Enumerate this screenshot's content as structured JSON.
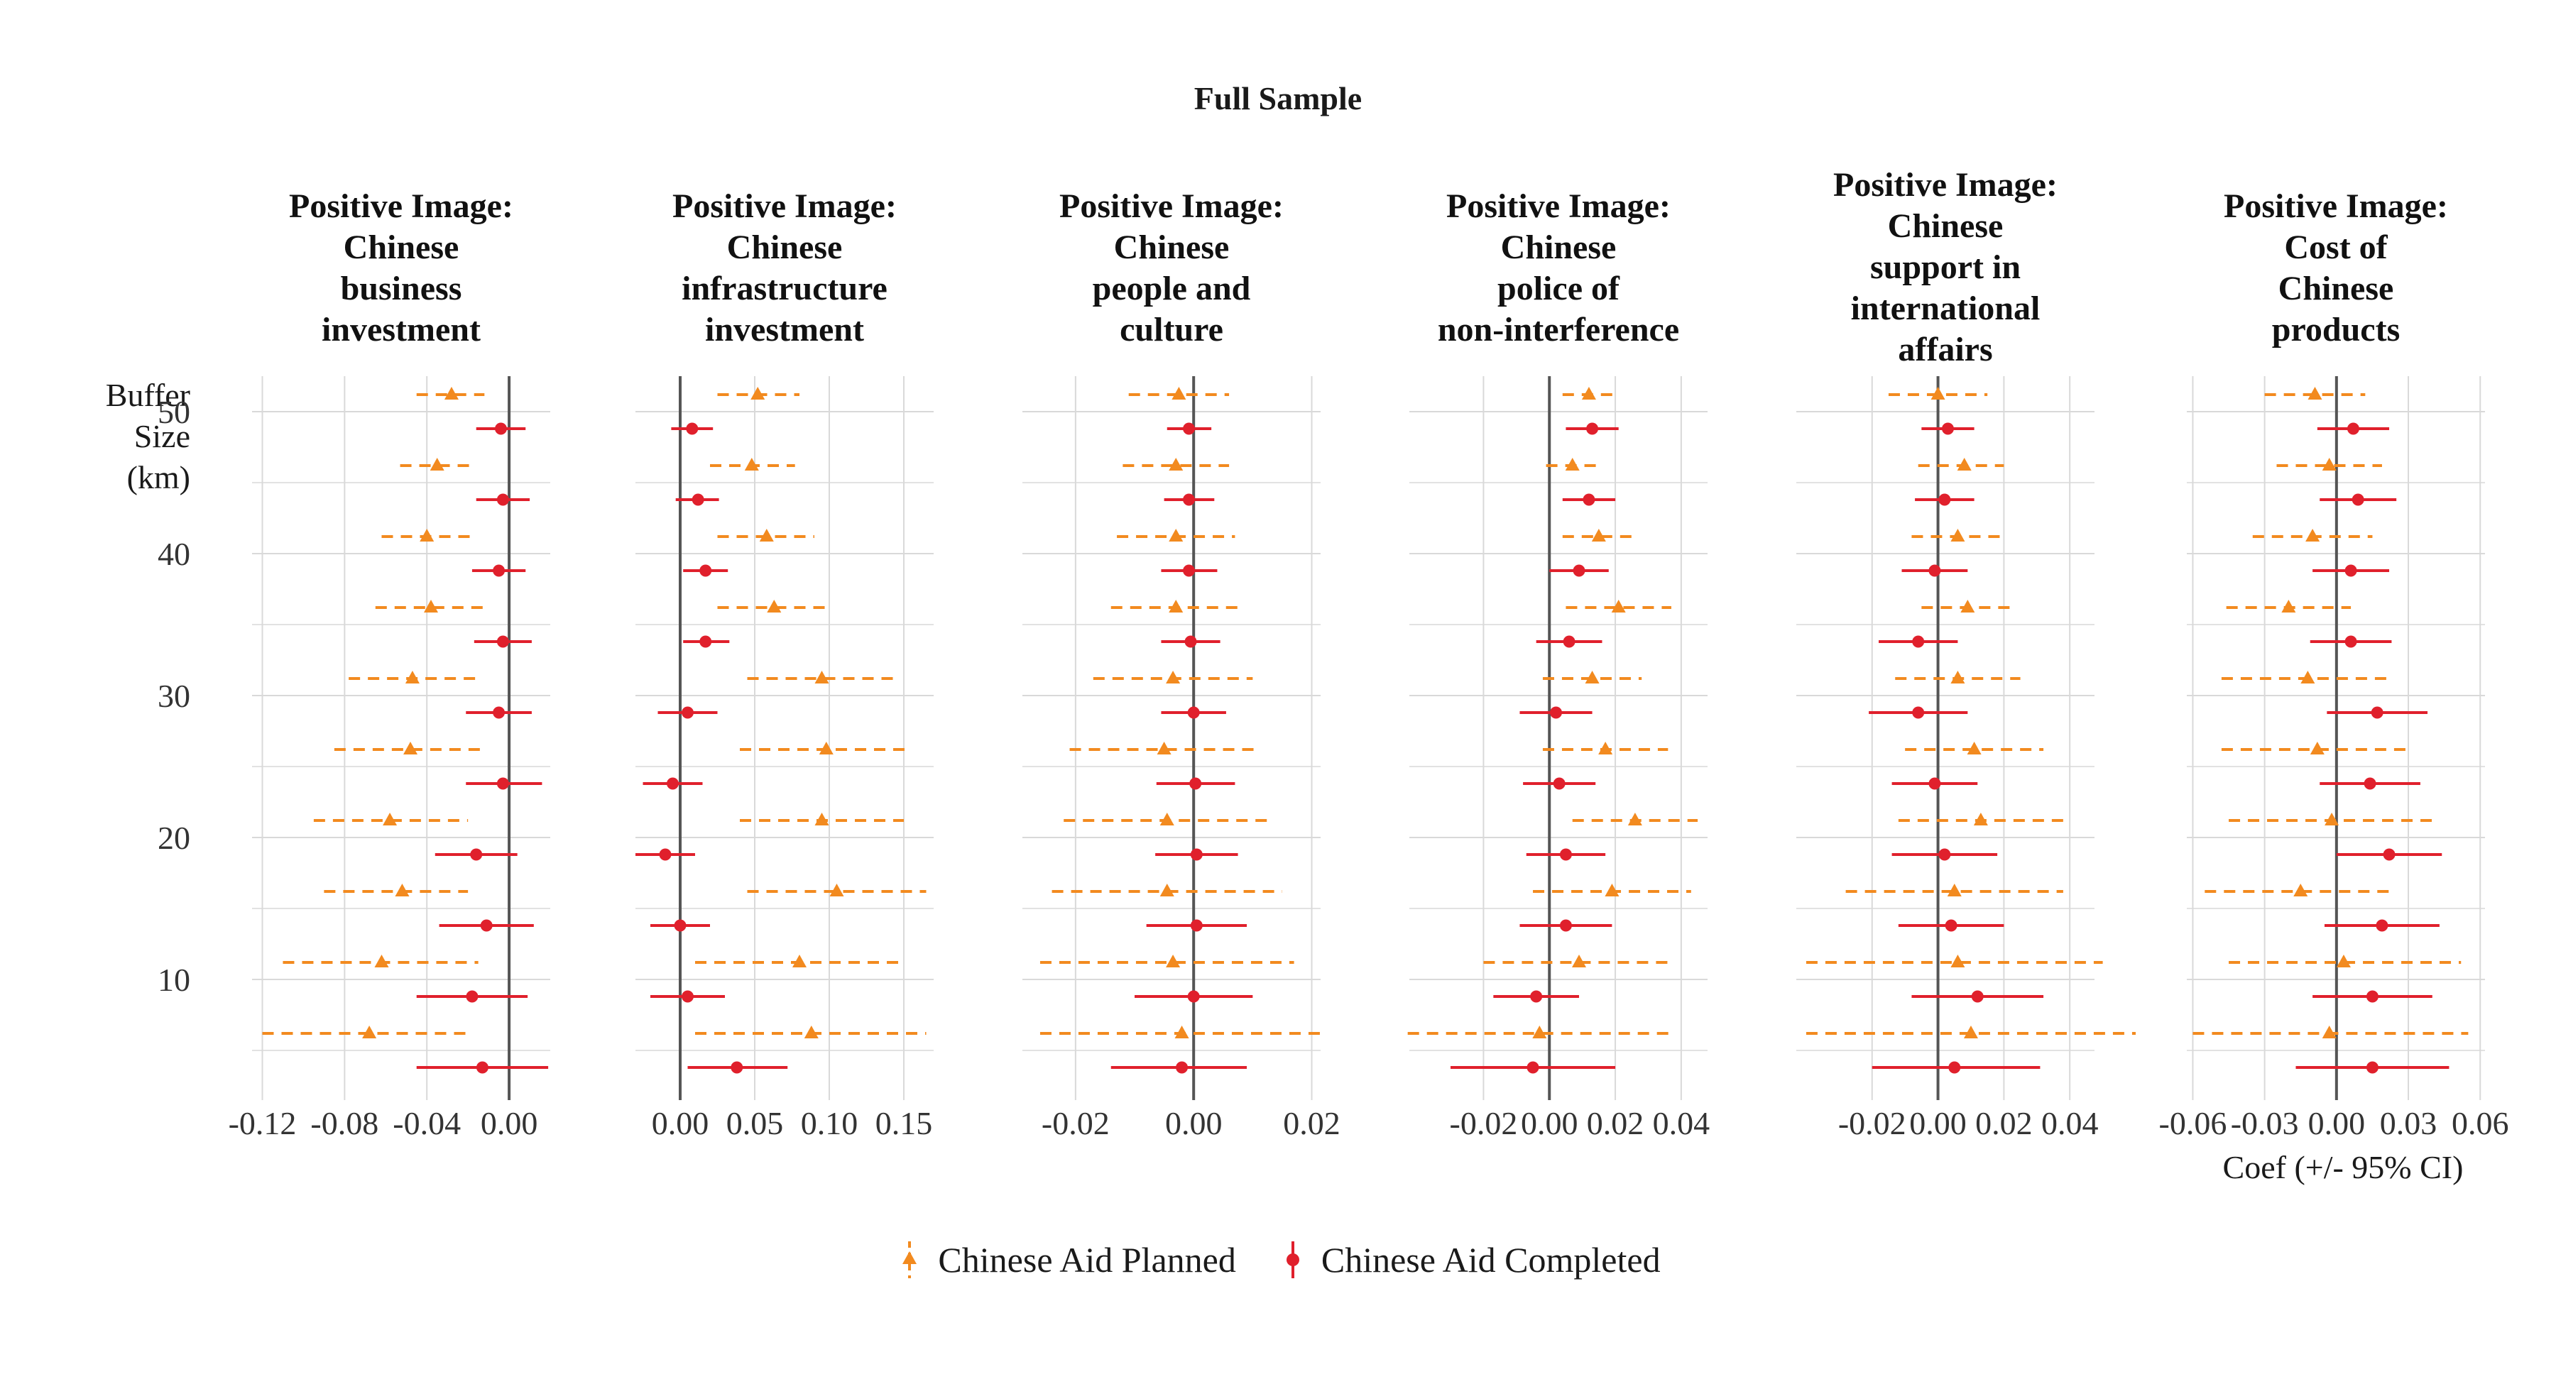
{
  "chart_data": {
    "type": "scatter",
    "title": "Full Sample",
    "y_axis_label": [
      "Buffer",
      "Size",
      "(km)"
    ],
    "y_ticks": [
      10,
      20,
      30,
      40,
      50
    ],
    "y_range": [
      52.5,
      1.5
    ],
    "buffer_sizes": [
      5,
      10,
      15,
      20,
      25,
      30,
      35,
      40,
      45,
      50
    ],
    "x_axis_label": "Coef (+/- 95% CI)",
    "legend": {
      "planned": "Chinese Aid Planned",
      "completed": "Chinese Aid Completed"
    },
    "colors": {
      "planned": "#f28a1f",
      "completed": "#e0202c",
      "zero_line": "#555555",
      "grid": "#d9d9d9"
    },
    "panels": [
      {
        "title_lines": [
          "Positive Image:",
          "Chinese",
          "business",
          "investment"
        ],
        "xlim": [
          -0.125,
          0.02
        ],
        "ticks": [
          -0.12,
          -0.08,
          -0.04,
          0.0
        ],
        "tick_labels": [
          "-0.12",
          "-0.08",
          "-0.04",
          "0.00"
        ],
        "planned": [
          [
            -0.068,
            -0.12,
            -0.02
          ],
          [
            -0.062,
            -0.11,
            -0.015
          ],
          [
            -0.052,
            -0.09,
            -0.02
          ],
          [
            -0.058,
            -0.095,
            -0.02
          ],
          [
            -0.048,
            -0.085,
            -0.012
          ],
          [
            -0.047,
            -0.078,
            -0.016
          ],
          [
            -0.038,
            -0.065,
            -0.01
          ],
          [
            -0.04,
            -0.062,
            -0.018
          ],
          [
            -0.035,
            -0.053,
            -0.017
          ],
          [
            -0.028,
            -0.045,
            -0.012
          ]
        ],
        "completed": [
          [
            -0.013,
            -0.045,
            0.019
          ],
          [
            -0.018,
            -0.045,
            0.009
          ],
          [
            -0.011,
            -0.034,
            0.012
          ],
          [
            -0.016,
            -0.036,
            0.004
          ],
          [
            -0.003,
            -0.021,
            0.016
          ],
          [
            -0.005,
            -0.021,
            0.011
          ],
          [
            -0.003,
            -0.017,
            0.011
          ],
          [
            -0.005,
            -0.018,
            0.008
          ],
          [
            -0.003,
            -0.016,
            0.01
          ],
          [
            -0.004,
            -0.016,
            0.008
          ]
        ]
      },
      {
        "title_lines": [
          "Positive Image:",
          "Chinese",
          "infrastructure",
          "investment"
        ],
        "xlim": [
          -0.03,
          0.17
        ],
        "ticks": [
          0.0,
          0.05,
          0.1,
          0.15
        ],
        "tick_labels": [
          "0.00",
          "0.05",
          "0.10",
          "0.15"
        ],
        "planned": [
          [
            0.088,
            0.01,
            0.165
          ],
          [
            0.08,
            0.01,
            0.148
          ],
          [
            0.105,
            0.045,
            0.165
          ],
          [
            0.095,
            0.04,
            0.15
          ],
          [
            0.098,
            0.04,
            0.155
          ],
          [
            0.095,
            0.045,
            0.145
          ],
          [
            0.063,
            0.025,
            0.1
          ],
          [
            0.058,
            0.025,
            0.09
          ],
          [
            0.048,
            0.02,
            0.077
          ],
          [
            0.052,
            0.025,
            0.08
          ]
        ],
        "completed": [
          [
            0.038,
            0.005,
            0.072
          ],
          [
            0.005,
            -0.02,
            0.03
          ],
          [
            0.0,
            -0.02,
            0.02
          ],
          [
            -0.01,
            -0.03,
            0.01
          ],
          [
            -0.005,
            -0.025,
            0.015
          ],
          [
            0.005,
            -0.015,
            0.025
          ],
          [
            0.017,
            0.002,
            0.033
          ],
          [
            0.017,
            0.002,
            0.032
          ],
          [
            0.012,
            -0.003,
            0.026
          ],
          [
            0.008,
            -0.006,
            0.022
          ]
        ]
      },
      {
        "title_lines": [
          "Positive Image:",
          "Chinese",
          "people and",
          "culture"
        ],
        "xlim": [
          -0.029,
          0.0215
        ],
        "ticks": [
          -0.02,
          0.0,
          0.02
        ],
        "tick_labels": [
          "-0.02",
          "0.00",
          "0.02"
        ],
        "planned": [
          [
            -0.002,
            -0.026,
            0.022
          ],
          [
            -0.0035,
            -0.026,
            0.017
          ],
          [
            -0.0045,
            -0.024,
            0.015
          ],
          [
            -0.0045,
            -0.022,
            0.013
          ],
          [
            -0.005,
            -0.021,
            0.011
          ],
          [
            -0.0035,
            -0.017,
            0.01
          ],
          [
            -0.003,
            -0.014,
            0.008
          ],
          [
            -0.003,
            -0.013,
            0.007
          ],
          [
            -0.003,
            -0.012,
            0.006
          ],
          [
            -0.0025,
            -0.011,
            0.006
          ]
        ],
        "completed": [
          [
            -0.002,
            -0.014,
            0.009
          ],
          [
            0.0,
            -0.01,
            0.01
          ],
          [
            0.0005,
            -0.008,
            0.009
          ],
          [
            0.0005,
            -0.0065,
            0.0075
          ],
          [
            0.0003,
            -0.0063,
            0.007
          ],
          [
            0.0,
            -0.0055,
            0.0055
          ],
          [
            -0.0005,
            -0.0055,
            0.0045
          ],
          [
            -0.0008,
            -0.0055,
            0.004
          ],
          [
            -0.0008,
            -0.005,
            0.0035
          ],
          [
            -0.0008,
            -0.0045,
            0.003
          ]
        ]
      },
      {
        "title_lines": [
          "Positive Image:",
          "Chinese",
          "police of",
          "non-interference"
        ],
        "xlim": [
          -0.0425,
          0.048
        ],
        "ticks": [
          -0.02,
          0.0,
          0.02,
          0.04
        ],
        "tick_labels": [
          "-0.02",
          "0.00",
          "0.02",
          "0.04"
        ],
        "planned": [
          [
            -0.003,
            -0.043,
            0.037
          ],
          [
            0.009,
            -0.02,
            0.038
          ],
          [
            0.019,
            -0.005,
            0.043
          ],
          [
            0.026,
            0.007,
            0.045
          ],
          [
            0.017,
            -0.002,
            0.036
          ],
          [
            0.013,
            -0.002,
            0.028
          ],
          [
            0.021,
            0.005,
            0.037
          ],
          [
            0.015,
            0.004,
            0.026
          ],
          [
            0.007,
            -0.001,
            0.015
          ],
          [
            0.012,
            0.004,
            0.02
          ]
        ],
        "completed": [
          [
            -0.005,
            -0.03,
            0.02
          ],
          [
            -0.004,
            -0.017,
            0.009
          ],
          [
            0.005,
            -0.009,
            0.019
          ],
          [
            0.005,
            -0.007,
            0.017
          ],
          [
            0.003,
            -0.008,
            0.014
          ],
          [
            0.002,
            -0.009,
            0.013
          ],
          [
            0.006,
            -0.004,
            0.016
          ],
          [
            0.009,
            0.0,
            0.018
          ],
          [
            0.012,
            0.004,
            0.02
          ],
          [
            0.013,
            0.005,
            0.021
          ]
        ]
      },
      {
        "title_lines": [
          "Positive Image:",
          "Chinese",
          "support in",
          "international",
          "affairs"
        ],
        "xlim": [
          -0.043,
          0.0475
        ],
        "ticks": [
          -0.02,
          0.0,
          0.02,
          0.04
        ],
        "tick_labels": [
          "-0.02",
          "0.00",
          "0.02",
          "0.04"
        ],
        "planned": [
          [
            0.01,
            -0.04,
            0.06
          ],
          [
            0.006,
            -0.04,
            0.05
          ],
          [
            0.005,
            -0.028,
            0.038
          ],
          [
            0.013,
            -0.012,
            0.038
          ],
          [
            0.011,
            -0.01,
            0.032
          ],
          [
            0.006,
            -0.013,
            0.025
          ],
          [
            0.009,
            -0.005,
            0.023
          ],
          [
            0.006,
            -0.008,
            0.02
          ],
          [
            0.008,
            -0.006,
            0.02
          ],
          [
            0.0,
            -0.015,
            0.015
          ]
        ],
        "completed": [
          [
            0.005,
            -0.02,
            0.031
          ],
          [
            0.012,
            -0.008,
            0.032
          ],
          [
            0.004,
            -0.012,
            0.02
          ],
          [
            0.002,
            -0.014,
            0.018
          ],
          [
            -0.001,
            -0.014,
            0.012
          ],
          [
            -0.006,
            -0.021,
            0.009
          ],
          [
            -0.006,
            -0.018,
            0.006
          ],
          [
            -0.001,
            -0.011,
            0.009
          ],
          [
            0.002,
            -0.007,
            0.011
          ],
          [
            0.003,
            -0.005,
            0.011
          ]
        ]
      },
      {
        "title_lines": [
          "Positive Image:",
          "Cost of",
          "Chinese",
          "products"
        ],
        "xlim": [
          -0.0625,
          0.062
        ],
        "ticks": [
          -0.06,
          -0.03,
          0.0,
          0.03,
          0.06
        ],
        "tick_labels": [
          "-0.06",
          "-0.03",
          "0.00",
          "0.03",
          "0.06"
        ],
        "planned": [
          [
            -0.003,
            -0.06,
            0.055
          ],
          [
            0.003,
            -0.045,
            0.052
          ],
          [
            -0.015,
            -0.055,
            0.025
          ],
          [
            -0.002,
            -0.045,
            0.04
          ],
          [
            -0.008,
            -0.048,
            0.032
          ],
          [
            -0.012,
            -0.048,
            0.024
          ],
          [
            -0.02,
            -0.046,
            0.006
          ],
          [
            -0.01,
            -0.035,
            0.015
          ],
          [
            -0.003,
            -0.025,
            0.019
          ],
          [
            -0.009,
            -0.03,
            0.012
          ]
        ],
        "completed": [
          [
            0.015,
            -0.017,
            0.047
          ],
          [
            0.015,
            -0.01,
            0.04
          ],
          [
            0.019,
            -0.005,
            0.043
          ],
          [
            0.022,
            0.0,
            0.044
          ],
          [
            0.014,
            -0.007,
            0.035
          ],
          [
            0.017,
            -0.004,
            0.038
          ],
          [
            0.006,
            -0.011,
            0.023
          ],
          [
            0.006,
            -0.01,
            0.022
          ],
          [
            0.009,
            -0.007,
            0.025
          ],
          [
            0.007,
            -0.008,
            0.022
          ]
        ]
      }
    ]
  }
}
